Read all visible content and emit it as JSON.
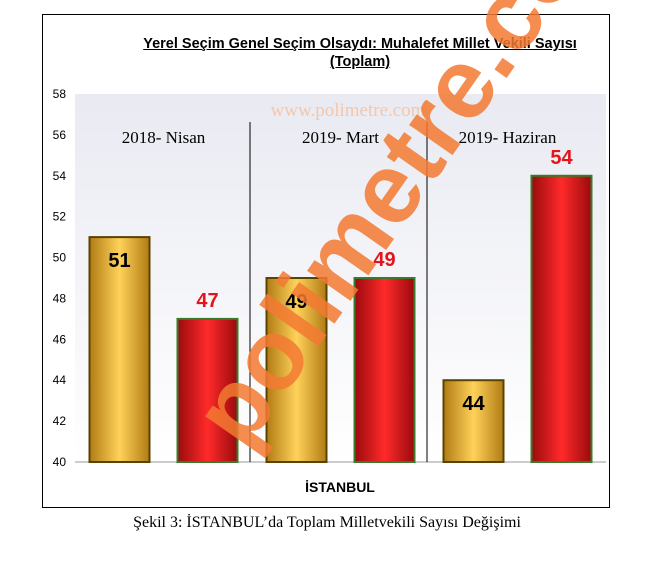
{
  "chart_data": {
    "type": "bar",
    "title_line1": "Yerel Seçim Genel Seçim Olsaydı: Muhalefet Millet Vekili Sayısı",
    "title_line2": "(Toplam)",
    "xlabel": "İSTANBUL",
    "ylabel": "",
    "ylim": [
      40,
      58
    ],
    "yticks": [
      40,
      42,
      44,
      46,
      48,
      50,
      52,
      54,
      56,
      58
    ],
    "grid": false,
    "legend": "none",
    "groups": [
      "2018- Nisan",
      "2019- Mart",
      "2019- Haziran"
    ],
    "series": [
      {
        "values": [
          51,
          49,
          44
        ],
        "color": "#f5b52c",
        "label_color": "#000000"
      },
      {
        "values": [
          47,
          49,
          54
        ],
        "color": "#e3141b",
        "label_color": "#e3141b"
      }
    ]
  },
  "watermark": "www.polimetre.com",
  "watermark_diagonal": "polimetre.com",
  "caption": "Şekil 3: İSTANBUL’da Toplam Milletvekili Sayısı Değişimi"
}
